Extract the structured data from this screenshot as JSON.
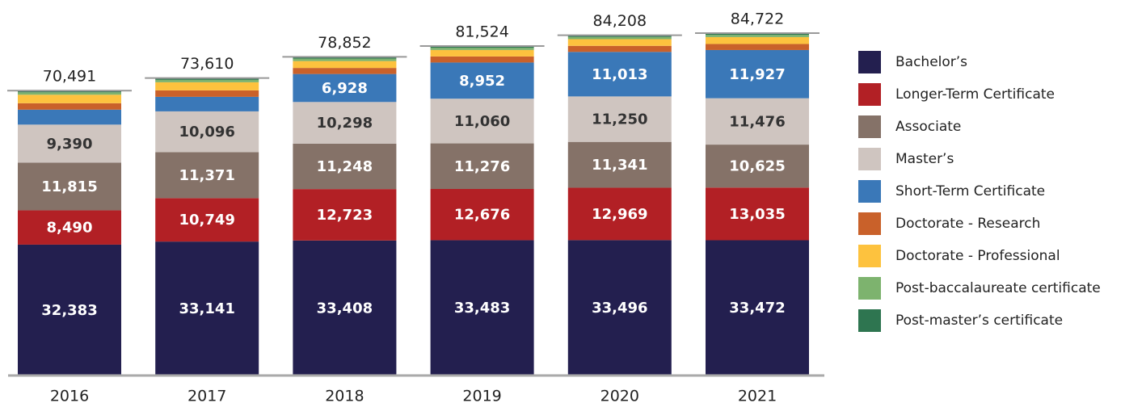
{
  "chart_data": {
    "type": "stacked_bar",
    "categories": [
      "2016",
      "2017",
      "2018",
      "2019",
      "2020",
      "2021"
    ],
    "series": [
      {
        "name": "Bachelor’s",
        "color": "#231f4f",
        "values": [
          32383,
          33141,
          33408,
          33483,
          33496,
          33472
        ],
        "value_labels": [
          "32,383",
          "33,141",
          "33,408",
          "33,483",
          "33,496",
          "33,472"
        ]
      },
      {
        "name": "Longer-Term Certificate",
        "color": "#b22025",
        "values": [
          8490,
          10749,
          12723,
          12676,
          12969,
          13035
        ],
        "value_labels": [
          "8,490",
          "10,749",
          "12,723",
          "12,676",
          "12,969",
          "13,035"
        ]
      },
      {
        "name": "Associate",
        "color": "#857268",
        "values": [
          11815,
          11371,
          11248,
          11276,
          11341,
          10625
        ],
        "value_labels": [
          "11,815",
          "11,371",
          "11,248",
          "11,276",
          "11,341",
          "10,625"
        ]
      },
      {
        "name": "Master’s",
        "color": "#cfc5c0",
        "values": [
          9390,
          10096,
          10298,
          11060,
          11250,
          11476
        ],
        "value_labels": [
          "9,390",
          "10,096",
          "10,298",
          "11,060",
          "11,250",
          "11,476"
        ]
      },
      {
        "name": "Short-Term Certificate",
        "color": "#3a78b8",
        "values": [
          3700,
          3600,
          6928,
          8952,
          11013,
          11927
        ],
        "value_labels": [
          null,
          null,
          "6,928",
          "8,952",
          "11,013",
          "11,927"
        ]
      },
      {
        "name": "Doctorate - Research",
        "color": "#c9612a",
        "values": [
          1600,
          1600,
          1500,
          1500,
          1500,
          1500
        ]
      },
      {
        "name": "Doctorate - Professional",
        "color": "#fdc23e",
        "values": [
          2100,
          2000,
          1700,
          1600,
          1650,
          1700
        ]
      },
      {
        "name": "Post-baccalaureate certificate",
        "color": "#7db36e",
        "values": [
          600,
          600,
          600,
          550,
          550,
          550
        ]
      },
      {
        "name": "Post-master’s certificate",
        "color": "#2e7550",
        "values": [
          413,
          453,
          447,
          427,
          439,
          437
        ]
      }
    ],
    "totals": [
      70491,
      73610,
      78852,
      81524,
      84208,
      84722
    ],
    "total_labels": [
      "70,491",
      "73,610",
      "78,852",
      "81,524",
      "84,208",
      "84,722"
    ]
  }
}
